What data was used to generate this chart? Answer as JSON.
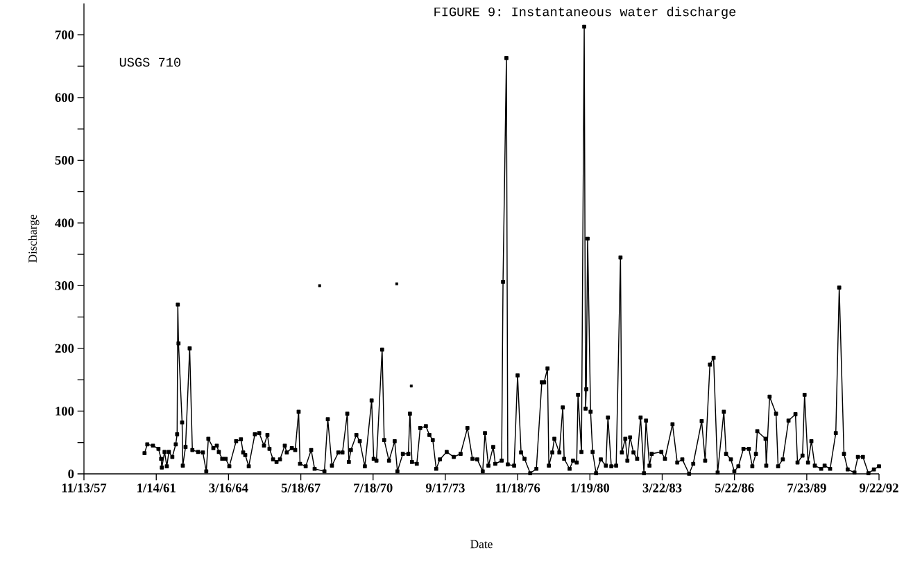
{
  "chart_data": {
    "type": "line",
    "title": "FIGURE 9:  Instantaneous water discharge",
    "xlabel": "Date",
    "ylabel": "Discharge",
    "annotations": [
      "USGS 710"
    ],
    "marker": "square",
    "line_style": "solid",
    "xlim": [
      "1957-11-13",
      "1992-09-22"
    ],
    "ylim": [
      0,
      750
    ],
    "xticks": [
      {
        "value": "1957-11-13",
        "label": "11/13/57"
      },
      {
        "value": "1961-01-14",
        "label": "1/14/61"
      },
      {
        "value": "1964-03-16",
        "label": "3/16/64"
      },
      {
        "value": "1967-05-18",
        "label": "5/18/67"
      },
      {
        "value": "1970-07-18",
        "label": "7/18/70"
      },
      {
        "value": "1973-09-17",
        "label": "9/17/73"
      },
      {
        "value": "1976-11-18",
        "label": "11/18/76"
      },
      {
        "value": "1980-01-19",
        "label": "1/19/80"
      },
      {
        "value": "1983-03-22",
        "label": "3/22/83"
      },
      {
        "value": "1986-05-22",
        "label": "5/22/86"
      },
      {
        "value": "1989-07-23",
        "label": "7/23/89"
      },
      {
        "value": "1992-09-22",
        "label": "9/22/92"
      }
    ],
    "yticks": [
      0,
      {
        "value": 50,
        "label": null
      },
      100,
      {
        "value": 150,
        "label": null
      },
      200,
      {
        "value": 250,
        "label": null
      },
      300,
      {
        "value": 350,
        "label": null
      },
      400,
      {
        "value": 450,
        "label": null
      },
      500,
      {
        "value": 550,
        "label": null
      },
      600,
      {
        "value": 650,
        "label": null
      },
      700
    ],
    "series": [
      {
        "color": "#000000",
        "x": [
          "1960-07-10",
          "1960-08-23",
          "1960-11-22",
          "1961-02-18",
          "1961-04-02",
          "1961-04-13",
          "1961-05-27",
          "1961-07-02",
          "1961-08-04",
          "1961-09-28",
          "1961-11-22",
          "1961-12-14",
          "1961-12-25",
          "1962-01-05",
          "1962-03-04",
          "1962-03-15",
          "1962-04-28",
          "1962-07-03",
          "1962-08-15",
          "1962-11-15",
          "1963-01-30",
          "1963-03-26",
          "1963-04-28",
          "1963-07-17",
          "1963-09-10",
          "1963-10-13",
          "1963-12-06",
          "1964-01-30",
          "1964-03-29",
          "1964-07-16",
          "1964-10-01",
          "1964-11-06",
          "1964-12-09",
          "1965-02-03",
          "1965-05-12",
          "1965-07-21",
          "1965-10-05",
          "1965-11-29",
          "1966-01-01",
          "1966-02-28",
          "1966-04-24",
          "1966-06-18",
          "1966-09-03",
          "1966-10-05",
          "1966-12-25",
          "1967-02-17",
          "1967-04-13",
          "1967-05-05",
          "1967-08-04",
          "1967-10-31",
          "1967-12-25",
          "1968-05-30",
          "1968-07-23",
          "1968-09-27",
          "1969-01-08",
          "1969-03-15",
          "1969-05-31",
          "1969-06-25",
          "1969-07-28",
          "1969-10-24",
          "1969-12-17",
          "1970-03-08",
          "1970-06-25",
          "1970-07-28",
          "1970-09-10",
          "1970-12-10",
          "1971-01-12",
          "1971-03-30",
          "1971-06-29",
          "1971-08-12",
          "1971-11-07",
          "1972-02-03",
          "1972-02-28",
          "1972-04-01",
          "1972-06-17",
          "1972-08-11",
          "1972-11-10",
          "1973-01-05",
          "1973-02-28",
          "1973-04-24",
          "1973-06-22",
          "1973-10-09",
          "1974-01-30",
          "1974-05-20",
          "1974-09-06",
          "1974-11-26",
          "1975-02-10",
          "1975-05-09",
          "1975-06-14",
          "1975-08-08",
          "1975-10-24",
          "1975-11-26",
          "1976-03-07",
          "1976-03-29",
          "1976-05-22",
          "1976-06-13",
          "1976-09-23",
          "1976-11-17",
          "1977-01-12",
          "1977-03-08",
          "1977-06-07",
          "1977-09-14",
          "1977-12-10",
          "1978-01-16",
          "1978-03-11",
          "1978-04-02",
          "1978-05-27",
          "1978-06-29",
          "1978-09-17",
          "1978-11-11",
          "1978-12-03",
          "1979-02-28",
          "1979-04-24",
          "1979-06-22",
          "1979-07-13",
          "1979-09-06",
          "1979-10-20",
          "1979-11-11",
          "1979-11-22",
          "1979-12-14",
          "1980-01-30",
          "1980-03-03",
          "1980-04-27",
          "1980-07-12",
          "1980-10-01",
          "1980-11-03",
          "1980-12-27",
          "1981-03-15",
          "1981-05-23",
          "1981-06-14",
          "1981-08-08",
          "1981-09-10",
          "1981-10-24",
          "1981-12-17",
          "1982-02-14",
          "1982-04-10",
          "1982-06-03",
          "1982-07-06",
          "1982-08-30",
          "1982-10-05",
          "1983-03-08",
          "1983-05-05",
          "1983-09-03",
          "1983-11-18",
          "1984-02-07",
          "1984-05-26",
          "1984-07-31",
          "1984-12-13",
          "1985-02-07",
          "1985-04-24",
          "1985-06-22",
          "1985-08-26",
          "1985-12-03",
          "1986-01-08",
          "1986-03-26",
          "1986-05-20",
          "1986-07-24",
          "1986-10-13",
          "1987-01-08",
          "1987-03-04",
          "1987-05-01",
          "1987-05-23",
          "1987-10-02",
          "1987-10-13",
          "1987-12-06",
          "1988-03-18",
          "1988-04-20",
          "1988-07-05",
          "1988-10-04",
          "1989-01-23",
          "1989-02-25",
          "1989-05-16",
          "1989-06-18",
          "1989-08-12",
          "1989-10-05",
          "1989-11-29",
          "1990-03-11",
          "1990-05-05",
          "1990-08-01",
          "1990-10-31",
          "1990-12-25",
          "1991-03-11",
          "1991-05-09",
          "1991-08-26",
          "1991-10-20",
          "1992-01-08",
          "1992-04-05",
          "1992-07-02",
          "1992-09-22"
        ],
        "values": [
          33,
          47,
          45,
          40,
          24,
          10,
          35,
          12,
          35,
          27,
          47,
          63,
          270,
          208,
          82,
          13,
          43,
          200,
          38,
          35,
          34,
          4,
          56,
          41,
          45,
          35,
          24,
          24,
          12,
          52,
          55,
          34,
          30,
          12,
          63,
          65,
          45,
          62,
          40,
          23,
          19,
          23,
          45,
          34,
          41,
          38,
          99,
          16,
          12,
          38,
          8,
          4,
          87,
          13,
          34,
          34,
          96,
          19,
          38,
          62,
          52,
          12,
          117,
          24,
          21,
          198,
          54,
          21,
          52,
          4,
          32,
          32,
          96,
          19,
          16,
          73,
          76,
          62,
          54,
          8,
          23,
          35,
          27,
          32,
          73,
          24,
          23,
          4,
          65,
          13,
          43,
          16,
          21,
          306,
          663,
          15,
          13,
          157,
          34,
          24,
          1,
          8,
          146,
          146,
          168,
          13,
          34,
          56,
          34,
          106,
          24,
          8,
          21,
          18,
          126,
          35,
          713,
          104,
          135,
          375,
          99,
          35,
          1,
          23,
          13,
          90,
          12,
          13,
          345,
          34,
          56,
          21,
          58,
          34,
          24,
          90,
          1,
          85,
          13,
          32,
          35,
          24,
          79,
          18,
          23,
          0,
          16,
          84,
          21,
          174,
          185,
          2,
          99,
          32,
          23,
          4,
          12,
          40,
          40,
          12,
          32,
          68,
          56,
          13,
          123,
          96,
          12,
          23,
          85,
          95,
          18,
          29,
          126,
          18,
          52,
          13,
          8,
          13,
          8,
          65,
          297,
          32,
          7,
          2,
          27,
          27,
          1,
          7,
          12
        ]
      },
      {
        "type": "scatter",
        "color": "#000000",
        "x": [
          "1968-03-14",
          "1971-08-01",
          "1972-03-21"
        ],
        "values": [
          300,
          303,
          140
        ]
      }
    ]
  }
}
